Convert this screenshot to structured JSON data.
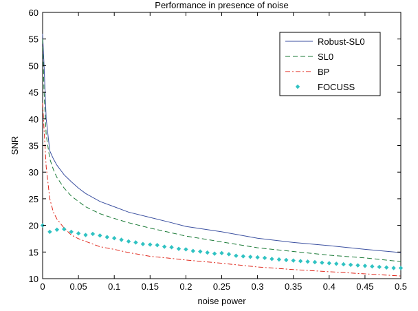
{
  "chart_data": {
    "type": "line",
    "title": "Performance in presence of noise",
    "xlabel": "noise power",
    "ylabel": "SNR",
    "xlim": [
      0,
      0.5
    ],
    "ylim": [
      10,
      60
    ],
    "xticks": [
      0,
      0.05,
      0.1,
      0.15,
      0.2,
      0.25,
      0.3,
      0.35,
      0.4,
      0.45,
      0.5
    ],
    "xtick_labels": [
      "0",
      "0.05",
      "0.1",
      "0.15",
      "0.2",
      "0.25",
      "0.3",
      "0.35",
      "0.4",
      "0.45",
      "0.5"
    ],
    "yticks": [
      10,
      15,
      20,
      25,
      30,
      35,
      40,
      45,
      50,
      55,
      60
    ],
    "ytick_labels": [
      "10",
      "15",
      "20",
      "25",
      "30",
      "35",
      "40",
      "45",
      "50",
      "55",
      "60"
    ],
    "grid": false,
    "legend": "top-right",
    "series": [
      {
        "name": "Robust-SL0",
        "style": "solid",
        "color": "#3b50a0",
        "x": [
          0,
          0.002,
          0.005,
          0.01,
          0.015,
          0.02,
          0.03,
          0.04,
          0.05,
          0.06,
          0.08,
          0.1,
          0.12,
          0.15,
          0.18,
          0.2,
          0.25,
          0.3,
          0.35,
          0.4,
          0.45,
          0.5
        ],
        "y": [
          56,
          50,
          40,
          34,
          32.5,
          31.3,
          29.5,
          28.2,
          27,
          26,
          24.5,
          23.5,
          22.5,
          21.5,
          20.5,
          19.8,
          18.8,
          17.6,
          16.8,
          16.2,
          15.5,
          14.9
        ]
      },
      {
        "name": "SL0",
        "style": "dashed",
        "color": "#1a7a36",
        "x": [
          0,
          0.002,
          0.005,
          0.01,
          0.015,
          0.02,
          0.03,
          0.04,
          0.05,
          0.06,
          0.08,
          0.1,
          0.12,
          0.15,
          0.18,
          0.2,
          0.25,
          0.3,
          0.35,
          0.4,
          0.45,
          0.5
        ],
        "y": [
          55,
          45,
          37,
          32.5,
          30.5,
          29,
          27,
          25.5,
          24.5,
          23.5,
          22.2,
          21.3,
          20.5,
          19.5,
          18.6,
          18,
          16.9,
          15.8,
          15.1,
          14.4,
          13.9,
          13.2
        ]
      },
      {
        "name": "BP",
        "style": "dashdot",
        "color": "#e0261a",
        "x": [
          0,
          0.002,
          0.005,
          0.01,
          0.015,
          0.02,
          0.03,
          0.04,
          0.05,
          0.06,
          0.08,
          0.1,
          0.12,
          0.15,
          0.18,
          0.2,
          0.25,
          0.3,
          0.35,
          0.4,
          0.45,
          0.5
        ],
        "y": [
          43,
          38,
          31,
          25,
          22.5,
          21.2,
          19.5,
          18.2,
          17.5,
          17,
          16,
          15.5,
          14.9,
          14.2,
          13.8,
          13.5,
          12.9,
          12.2,
          11.7,
          11.3,
          10.9,
          10.5
        ]
      },
      {
        "name": "FOCUSS",
        "style": "markers",
        "color": "#2fc2c2",
        "x": [
          0,
          0.01,
          0.02,
          0.03,
          0.04,
          0.05,
          0.06,
          0.07,
          0.08,
          0.09,
          0.1,
          0.11,
          0.12,
          0.13,
          0.14,
          0.15,
          0.16,
          0.17,
          0.18,
          0.19,
          0.2,
          0.21,
          0.22,
          0.23,
          0.24,
          0.25,
          0.26,
          0.27,
          0.28,
          0.29,
          0.3,
          0.31,
          0.32,
          0.33,
          0.34,
          0.35,
          0.36,
          0.37,
          0.38,
          0.39,
          0.4,
          0.41,
          0.42,
          0.43,
          0.44,
          0.45,
          0.46,
          0.47,
          0.48,
          0.49,
          0.5
        ],
        "y": [
          20,
          18.8,
          19.2,
          19.3,
          18.8,
          18.5,
          18.2,
          18.4,
          18.1,
          17.8,
          17.6,
          17.3,
          17,
          16.8,
          16.5,
          16.4,
          16.3,
          16,
          15.9,
          15.6,
          15.5,
          15.2,
          15.1,
          14.9,
          14.7,
          14.8,
          14.6,
          14.3,
          14.2,
          14.1,
          14,
          13.9,
          13.7,
          13.6,
          13.5,
          13.4,
          13.3,
          13.2,
          13.1,
          13,
          12.9,
          12.8,
          12.7,
          12.6,
          12.5,
          12.4,
          12.3,
          12.2,
          12.1,
          12,
          12
        ]
      }
    ]
  }
}
